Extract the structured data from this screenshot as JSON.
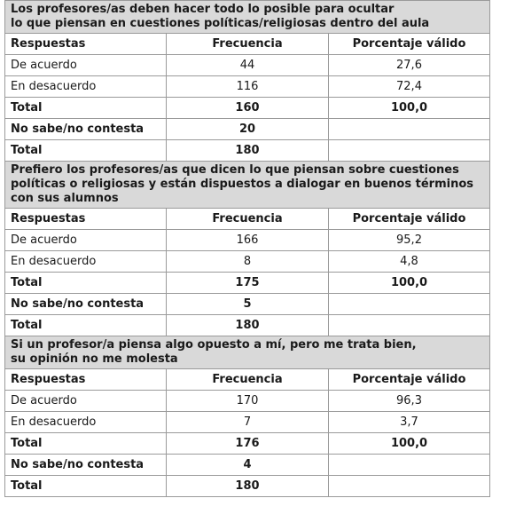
{
  "columns": {
    "respuestas": "Respuestas",
    "frecuencia": "Frecuencia",
    "porcentaje": "Porcentaje válido"
  },
  "sections": [
    {
      "title_lines": [
        "Los profesores/as deben hacer todo lo posible para ocultar",
        "lo que piensan en cuestiones políticas/religiosas dentro del aula"
      ],
      "rows": [
        {
          "label": "De acuerdo",
          "freq": "44",
          "pct": "27,6"
        },
        {
          "label": "En desacuerdo",
          "freq": "116",
          "pct": "72,4"
        },
        {
          "label": "Total",
          "freq": "160",
          "pct": "100,0"
        },
        {
          "label": "No sabe/no contesta",
          "freq": "20",
          "pct": ""
        },
        {
          "label": "Total",
          "freq": "180",
          "pct": ""
        }
      ]
    },
    {
      "title_lines": [
        "Prefiero los profesores/as que dicen lo que piensan sobre cuestiones",
        "políticas o religiosas y están dispuestos a dialogar en buenos términos",
        "con sus alumnos"
      ],
      "rows": [
        {
          "label": "De acuerdo",
          "freq": "166",
          "pct": "95,2"
        },
        {
          "label": "En desacuerdo",
          "freq": "8",
          "pct": "4,8"
        },
        {
          "label": "Total",
          "freq": "175",
          "pct": "100,0"
        },
        {
          "label": "No sabe/no contesta",
          "freq": "5",
          "pct": ""
        },
        {
          "label": "Total",
          "freq": "180",
          "pct": ""
        }
      ]
    },
    {
      "title_lines": [
        "Si un profesor/a piensa algo opuesto a mí, pero me trata bien,",
        "su opinión no me molesta"
      ],
      "rows": [
        {
          "label": "De acuerdo",
          "freq": "170",
          "pct": "96,3"
        },
        {
          "label": "En desacuerdo",
          "freq": "7",
          "pct": "3,7"
        },
        {
          "label": "Total",
          "freq": "176",
          "pct": "100,0"
        },
        {
          "label": "No sabe/no contesta",
          "freq": "4",
          "pct": ""
        },
        {
          "label": "Total",
          "freq": "180",
          "pct": ""
        }
      ]
    }
  ]
}
